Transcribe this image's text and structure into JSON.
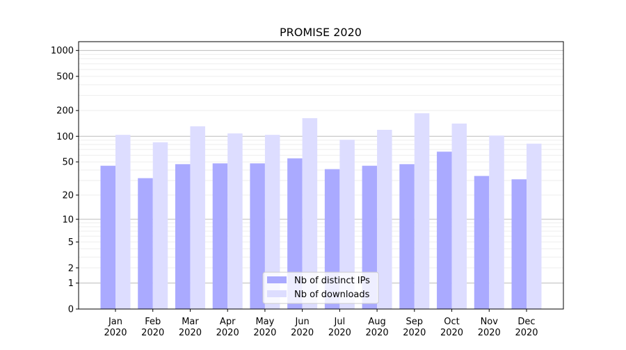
{
  "chart_data": {
    "type": "bar",
    "title": "PROMISE 2020",
    "xlabel": "",
    "ylabel": "",
    "yscale": "log(1+y)",
    "ylim": [
      0,
      1265
    ],
    "yticks": [
      0,
      1,
      2,
      5,
      10,
      20,
      50,
      100,
      200,
      500,
      1000
    ],
    "grid": true,
    "legend_position": "lower center",
    "categories": [
      "Jan\n2020",
      "Feb\n2020",
      "Mar\n2020",
      "Apr\n2020",
      "May\n2020",
      "Jun\n2020",
      "Jul\n2020",
      "Aug\n2020",
      "Sep\n2020",
      "Oct\n2020",
      "Nov\n2020",
      "Dec\n2020"
    ],
    "series": [
      {
        "name": "Nb of distinct IPs",
        "color": "#aaaaff",
        "values": [
          45,
          32,
          47,
          48,
          48,
          55,
          41,
          45,
          47,
          66,
          34,
          31
        ]
      },
      {
        "name": "Nb of downloads",
        "color": "#ddddff",
        "values": [
          104,
          85,
          131,
          108,
          104,
          163,
          91,
          119,
          186,
          141,
          102,
          82
        ]
      }
    ]
  }
}
